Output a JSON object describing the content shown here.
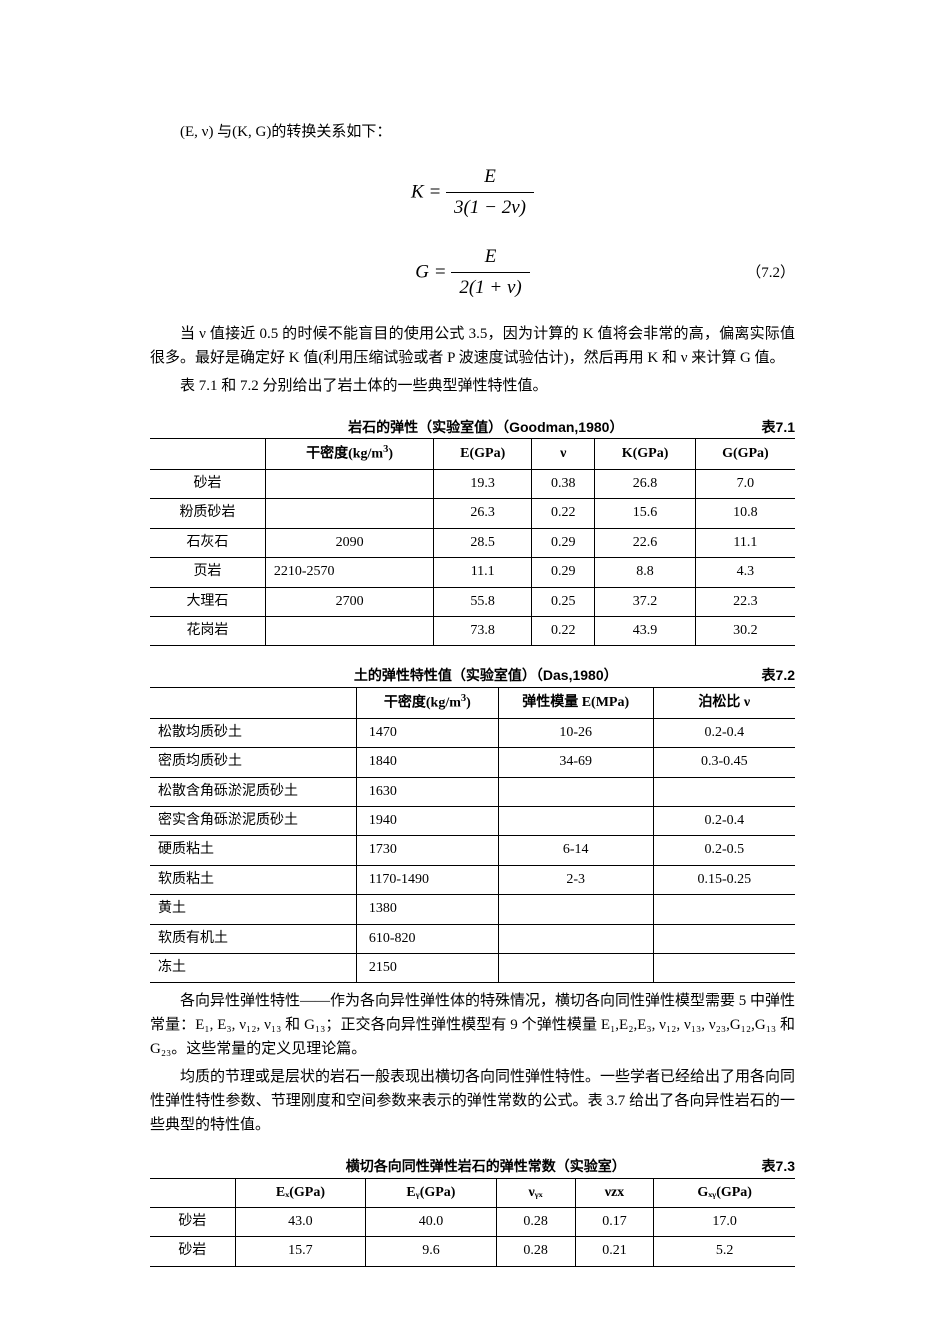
{
  "intro": "(E, ν)  与(K, G)的转换关系如下：",
  "formula1": {
    "lhs": "K",
    "num": "E",
    "den": "3(1 − 2ν)"
  },
  "formula2": {
    "lhs": "G",
    "num": "E",
    "den": "2(1 + ν)",
    "eqnum": "（7.2）"
  },
  "para1": "当 ν 值接近 0.5 的时候不能盲目的使用公式 3.5，因为计算的 K 值将会非常的高，偏离实际值很多。最好是确定好 K 值(利用压缩试验或者 P 波速度试验估计)，然后再用 K 和 ν 来计算 G 值。",
  "para2": "表 7.1 和 7.2 分别给出了岩土体的一些典型弹性特性值。",
  "table1": {
    "title": "岩石的弹性（实验室值）（Goodman,1980）",
    "label": "表7.1",
    "headers": [
      "",
      "干密度(kg/m³)",
      "E(GPa)",
      "ν",
      "K(GPa)",
      "G(GPa)"
    ],
    "rows": [
      [
        "砂岩",
        "",
        "19.3",
        "0.38",
        "26.8",
        "7.0"
      ],
      [
        "粉质砂岩",
        "",
        "26.3",
        "0.22",
        "15.6",
        "10.8"
      ],
      [
        "石灰石",
        "2090",
        "28.5",
        "0.29",
        "22.6",
        "11.1"
      ],
      [
        "页岩",
        "2210-2570",
        "11.1",
        "0.29",
        "8.8",
        "4.3"
      ],
      [
        "大理石",
        "2700",
        "55.8",
        "0.25",
        "37.2",
        "22.3"
      ],
      [
        "花岗岩",
        "",
        "73.8",
        "0.22",
        "43.9",
        "30.2"
      ]
    ]
  },
  "table2": {
    "title": "土的弹性特性值（实验室值）（Das,1980）",
    "label": "表7.2",
    "headers": [
      "",
      "干密度(kg/m³)",
      "弹性模量 E(MPa)",
      "泊松比 ν"
    ],
    "rows": [
      [
        "松散均质砂土",
        "1470",
        "10-26",
        "0.2-0.4"
      ],
      [
        "密质均质砂土",
        "1840",
        "34-69",
        "0.3-0.45"
      ],
      [
        "松散含角砾淤泥质砂土",
        "1630",
        "",
        ""
      ],
      [
        "密实含角砾淤泥质砂土",
        "1940",
        "",
        "0.2-0.4"
      ],
      [
        "硬质粘土",
        "1730",
        "6-14",
        "0.2-0.5"
      ],
      [
        "软质粘土",
        "1170-1490",
        "2-3",
        "0.15-0.25"
      ],
      [
        "黄土",
        "1380",
        "",
        ""
      ],
      [
        "软质有机土",
        "610-820",
        "",
        ""
      ],
      [
        "冻土",
        "2150",
        "",
        ""
      ]
    ]
  },
  "para3": "各向异性弹性特性——作为各向异性弹性体的特殊情况，横切各向同性弹性模型需要 5 中弹性常量：E₁, E₃, ν₁₂, ν₁₃ 和 G₁₃；正交各向异性弹性模型有 9 个弹性模量 E₁,E₂,E₃, ν₁₂, ν₁₃, ν₂₃,G₁₂,G₁₃ 和 G₂₃。这些常量的定义见理论篇。",
  "para4": "均质的节理或是层状的岩石一般表现出横切各向同性弹性特性。一些学者已经给出了用各向同性弹性特性参数、节理刚度和空间参数来表示的弹性常数的公式。表 3.7 给出了各向异性岩石的一些典型的特性值。",
  "table3": {
    "title": "横切各向同性弹性岩石的弹性常数（实验室）",
    "label": "表7.3",
    "headers": [
      "",
      "Eₓ(GPa)",
      "Eᵧ(GPa)",
      "νᵧₓ",
      "νzx",
      "Gₓᵧ(GPa)"
    ],
    "rows": [
      [
        "砂岩",
        "43.0",
        "40.0",
        "0.28",
        "0.17",
        "17.0"
      ],
      [
        "砂岩",
        "15.7",
        "9.6",
        "0.28",
        "0.21",
        "5.2"
      ]
    ]
  }
}
